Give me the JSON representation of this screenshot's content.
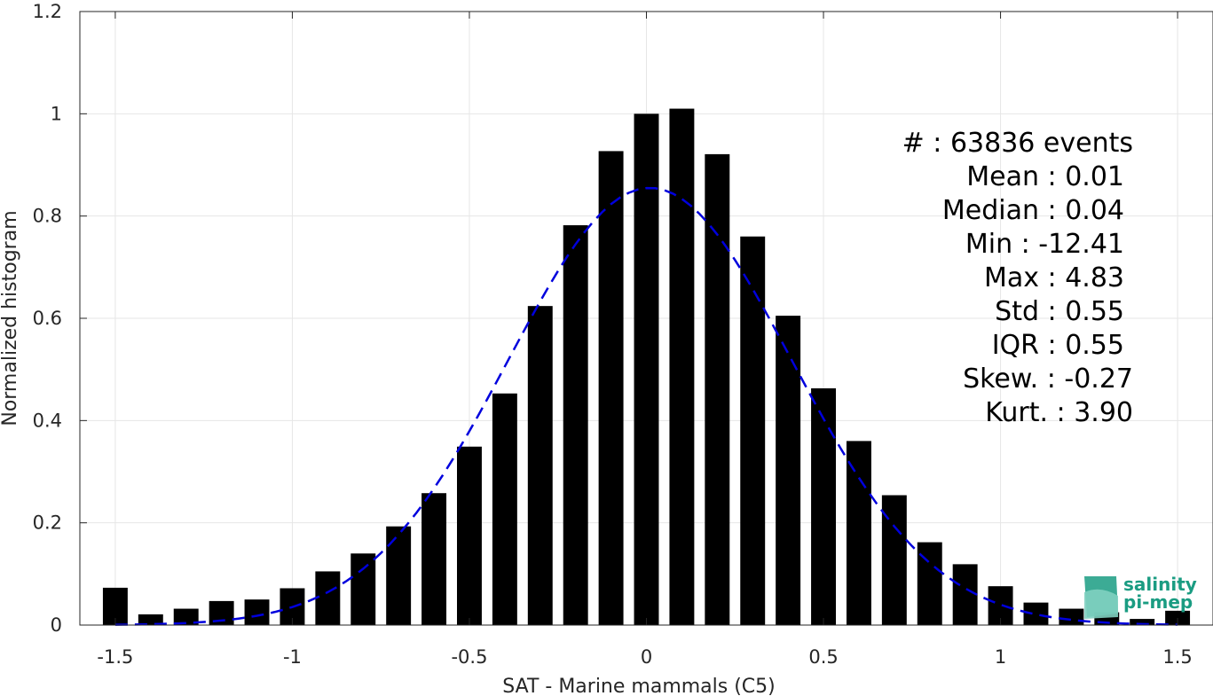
{
  "chart_data": {
    "type": "bar",
    "title": "",
    "xlabel": "SAT - Marine mammals (C5)",
    "ylabel": "Normalized histogram",
    "xlim": [
      -1.6,
      1.6
    ],
    "ylim": [
      0,
      1.2
    ],
    "x_ticks": [
      -1.5,
      -1,
      -0.5,
      0,
      0.5,
      1,
      1.5
    ],
    "x_tick_labels": [
      "-1.5",
      "-1",
      "-0.5",
      "0",
      "0.5",
      "1",
      "1.5"
    ],
    "y_ticks": [
      0,
      0.2,
      0.4,
      0.6,
      0.8,
      1,
      1.2
    ],
    "y_tick_labels": [
      "0",
      "0.2",
      "0.4",
      "0.6",
      "0.8",
      "1",
      "1.2"
    ],
    "grid": true,
    "bar_color": "#000000",
    "bar_width": 0.07,
    "bins": [
      -1.5,
      -1.4,
      -1.3,
      -1.2,
      -1.1,
      -1.0,
      -0.9,
      -0.8,
      -0.7,
      -0.6,
      -0.5,
      -0.4,
      -0.3,
      -0.2,
      -0.1,
      0.0,
      0.1,
      0.2,
      0.3,
      0.4,
      0.5,
      0.6,
      0.7,
      0.8,
      0.9,
      1.0,
      1.1,
      1.2,
      1.3,
      1.4,
      1.5
    ],
    "values": [
      0.073,
      0.021,
      0.032,
      0.047,
      0.05,
      0.072,
      0.105,
      0.14,
      0.193,
      0.258,
      0.349,
      0.453,
      0.624,
      0.782,
      0.927,
      1.0,
      1.01,
      0.921,
      0.76,
      0.605,
      0.463,
      0.36,
      0.254,
      0.162,
      0.119,
      0.076,
      0.044,
      0.032,
      0.025,
      0.012,
      0.028
    ],
    "fit_curve": {
      "type": "gaussian",
      "style": "dashed",
      "color": "#0000dd",
      "mean": 0.01,
      "std": 0.4,
      "peak": 0.855,
      "x_range": [
        -1.5,
        1.5
      ]
    },
    "stats": [
      "#  : 63836 events",
      "Mean : 0.01",
      "Median : 0.04",
      "Min : -12.41",
      "Max : 4.83",
      "Std : 0.55",
      "IQR : 0.55",
      "Skew. : -0.27",
      "Kurt. : 3.90"
    ]
  },
  "logo": {
    "line1": "salinity",
    "line2": "pi-mep",
    "color": "#1a9c82"
  }
}
